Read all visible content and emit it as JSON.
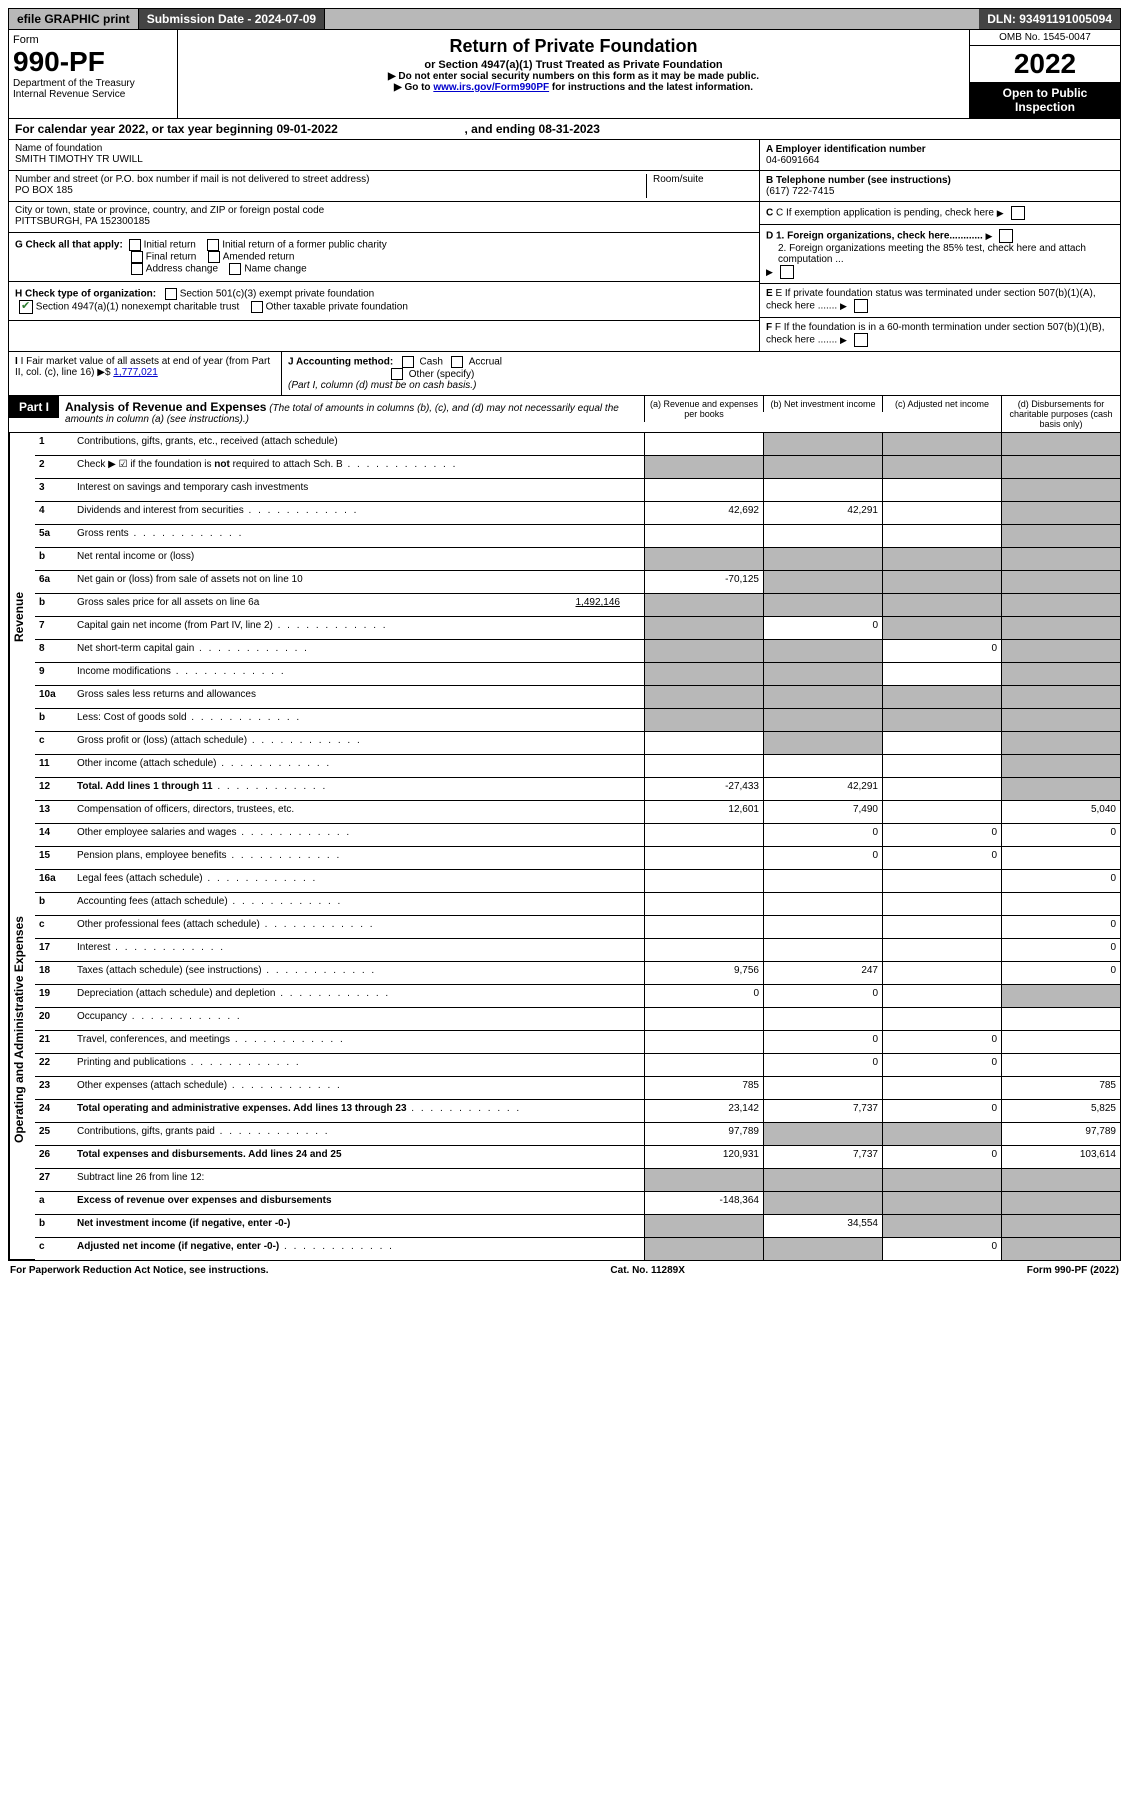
{
  "topbar": {
    "efile": "efile GRAPHIC print",
    "subdate_label": "Submission Date - ",
    "subdate": "2024-07-09",
    "dln_label": "DLN: ",
    "dln": "93491191005094"
  },
  "header": {
    "form_label": "Form",
    "form_no": "990-PF",
    "dept": "Department of the Treasury",
    "irs": "Internal Revenue Service",
    "title": "Return of Private Foundation",
    "subtitle": "or Section 4947(a)(1) Trust Treated as Private Foundation",
    "instr1": "▶ Do not enter social security numbers on this form as it may be made public.",
    "instr2_prefix": "▶ Go to ",
    "instr2_link": "www.irs.gov/Form990PF",
    "instr2_suffix": " for instructions and the latest information.",
    "omb": "OMB No. 1545-0047",
    "year": "2022",
    "open": "Open to Public Inspection"
  },
  "calyear": {
    "text": "For calendar year 2022, or tax year beginning 09-01-2022",
    "ending": ", and ending 08-31-2023"
  },
  "info": {
    "name_label": "Name of foundation",
    "name": "SMITH TIMOTHY TR UWILL",
    "addr_label": "Number and street (or P.O. box number if mail is not delivered to street address)",
    "addr": "PO BOX 185",
    "room_label": "Room/suite",
    "city_label": "City or town, state or province, country, and ZIP or foreign postal code",
    "city": "PITTSBURGH, PA  152300185",
    "a_label": "A Employer identification number",
    "a_val": "04-6091664",
    "b_label": "B Telephone number (see instructions)",
    "b_val": "(617) 722-7415",
    "c_label": "C If exemption application is pending, check here",
    "d1_label": "D 1. Foreign organizations, check here............",
    "d2_label": "2. Foreign organizations meeting the 85% test, check here and attach computation ...",
    "e_label": "E If private foundation status was terminated under section 507(b)(1)(A), check here .......",
    "f_label": "F If the foundation is in a 60-month termination under section 507(b)(1)(B), check here .......",
    "g_label": "G Check all that apply:",
    "g_opts": [
      "Initial return",
      "Initial return of a former public charity",
      "Final return",
      "Amended return",
      "Address change",
      "Name change"
    ],
    "h_label": "H Check type of organization:",
    "h_opts": [
      "Section 501(c)(3) exempt private foundation",
      "Section 4947(a)(1) nonexempt charitable trust",
      "Other taxable private foundation"
    ],
    "i_label": "I Fair market value of all assets at end of year (from Part II, col. (c), line 16)",
    "i_val": "1,777,021",
    "j_label": "J Accounting method:",
    "j_opts": [
      "Cash",
      "Accrual",
      "Other (specify)"
    ],
    "j_note": "(Part I, column (d) must be on cash basis.)"
  },
  "part1": {
    "label": "Part I",
    "title": "Analysis of Revenue and Expenses",
    "note": "(The total of amounts in columns (b), (c), and (d) may not necessarily equal the amounts in column (a) (see instructions).)",
    "col_a": "(a) Revenue and expenses per books",
    "col_b": "(b) Net investment income",
    "col_c": "(c) Adjusted net income",
    "col_d": "(d) Disbursements for charitable purposes (cash basis only)"
  },
  "sides": {
    "rev": "Revenue",
    "ops": "Operating and Administrative Expenses"
  },
  "rows": [
    {
      "n": "1",
      "d": "Contributions, gifts, grants, etc., received (attach schedule)",
      "a": "",
      "b": "s",
      "c": "s",
      "dd": "s"
    },
    {
      "n": "2",
      "d": "Check ▶ ☑ if the foundation is not required to attach Sch. B",
      "a": "s",
      "b": "s",
      "c": "s",
      "dd": "s",
      "dots": true,
      "bold_not": true
    },
    {
      "n": "3",
      "d": "Interest on savings and temporary cash investments",
      "a": "",
      "b": "",
      "c": "",
      "dd": "s"
    },
    {
      "n": "4",
      "d": "Dividends and interest from securities",
      "a": "42,692",
      "b": "42,291",
      "c": "",
      "dd": "s",
      "dots": true
    },
    {
      "n": "5a",
      "d": "Gross rents",
      "a": "",
      "b": "",
      "c": "",
      "dd": "s",
      "dots": true
    },
    {
      "n": "b",
      "d": "Net rental income or (loss)",
      "a": "s",
      "b": "s",
      "c": "s",
      "dd": "s",
      "inset": true
    },
    {
      "n": "6a",
      "d": "Net gain or (loss) from sale of assets not on line 10",
      "a": "-70,125",
      "b": "s",
      "c": "s",
      "dd": "s"
    },
    {
      "n": "b",
      "d": "Gross sales price for all assets on line 6a",
      "a": "s",
      "b": "s",
      "c": "s",
      "dd": "s",
      "inset": true,
      "inline_val": "1,492,146"
    },
    {
      "n": "7",
      "d": "Capital gain net income (from Part IV, line 2)",
      "a": "s",
      "b": "0",
      "c": "s",
      "dd": "s",
      "dots": true
    },
    {
      "n": "8",
      "d": "Net short-term capital gain",
      "a": "s",
      "b": "s",
      "c": "0",
      "dd": "s",
      "dots": true
    },
    {
      "n": "9",
      "d": "Income modifications",
      "a": "s",
      "b": "s",
      "c": "",
      "dd": "s",
      "dots": true
    },
    {
      "n": "10a",
      "d": "Gross sales less returns and allowances",
      "a": "s",
      "b": "s",
      "c": "s",
      "dd": "s",
      "inset": true
    },
    {
      "n": "b",
      "d": "Less: Cost of goods sold",
      "a": "s",
      "b": "s",
      "c": "s",
      "dd": "s",
      "inset": true,
      "dots": true
    },
    {
      "n": "c",
      "d": "Gross profit or (loss) (attach schedule)",
      "a": "",
      "b": "s",
      "c": "",
      "dd": "s",
      "dots": true
    },
    {
      "n": "11",
      "d": "Other income (attach schedule)",
      "a": "",
      "b": "",
      "c": "",
      "dd": "s",
      "dots": true
    },
    {
      "n": "12",
      "d": "Total. Add lines 1 through 11",
      "a": "-27,433",
      "b": "42,291",
      "c": "",
      "dd": "s",
      "dots": true,
      "bold": true
    },
    {
      "n": "13",
      "d": "Compensation of officers, directors, trustees, etc.",
      "a": "12,601",
      "b": "7,490",
      "c": "",
      "dd": "5,040"
    },
    {
      "n": "14",
      "d": "Other employee salaries and wages",
      "a": "",
      "b": "0",
      "c": "0",
      "dd": "0",
      "dots": true
    },
    {
      "n": "15",
      "d": "Pension plans, employee benefits",
      "a": "",
      "b": "0",
      "c": "0",
      "dd": "",
      "dots": true
    },
    {
      "n": "16a",
      "d": "Legal fees (attach schedule)",
      "a": "",
      "b": "",
      "c": "",
      "dd": "0",
      "dots": true
    },
    {
      "n": "b",
      "d": "Accounting fees (attach schedule)",
      "a": "",
      "b": "",
      "c": "",
      "dd": "",
      "dots": true
    },
    {
      "n": "c",
      "d": "Other professional fees (attach schedule)",
      "a": "",
      "b": "",
      "c": "",
      "dd": "0",
      "dots": true
    },
    {
      "n": "17",
      "d": "Interest",
      "a": "",
      "b": "",
      "c": "",
      "dd": "0",
      "dots": true
    },
    {
      "n": "18",
      "d": "Taxes (attach schedule) (see instructions)",
      "a": "9,756",
      "b": "247",
      "c": "",
      "dd": "0",
      "dots": true
    },
    {
      "n": "19",
      "d": "Depreciation (attach schedule) and depletion",
      "a": "0",
      "b": "0",
      "c": "",
      "dd": "s",
      "dots": true
    },
    {
      "n": "20",
      "d": "Occupancy",
      "a": "",
      "b": "",
      "c": "",
      "dd": "",
      "dots": true
    },
    {
      "n": "21",
      "d": "Travel, conferences, and meetings",
      "a": "",
      "b": "0",
      "c": "0",
      "dd": "",
      "dots": true
    },
    {
      "n": "22",
      "d": "Printing and publications",
      "a": "",
      "b": "0",
      "c": "0",
      "dd": "",
      "dots": true
    },
    {
      "n": "23",
      "d": "Other expenses (attach schedule)",
      "a": "785",
      "b": "",
      "c": "",
      "dd": "785",
      "dots": true
    },
    {
      "n": "24",
      "d": "Total operating and administrative expenses. Add lines 13 through 23",
      "a": "23,142",
      "b": "7,737",
      "c": "0",
      "dd": "5,825",
      "dots": true,
      "bold": true
    },
    {
      "n": "25",
      "d": "Contributions, gifts, grants paid",
      "a": "97,789",
      "b": "s",
      "c": "s",
      "dd": "97,789",
      "dots": true
    },
    {
      "n": "26",
      "d": "Total expenses and disbursements. Add lines 24 and 25",
      "a": "120,931",
      "b": "7,737",
      "c": "0",
      "dd": "103,614",
      "bold": true
    },
    {
      "n": "27",
      "d": "Subtract line 26 from line 12:",
      "a": "s",
      "b": "s",
      "c": "s",
      "dd": "s"
    },
    {
      "n": "a",
      "d": "Excess of revenue over expenses and disbursements",
      "a": "-148,364",
      "b": "s",
      "c": "s",
      "dd": "s",
      "bold": true
    },
    {
      "n": "b",
      "d": "Net investment income (if negative, enter -0-)",
      "a": "s",
      "b": "34,554",
      "c": "s",
      "dd": "s",
      "bold": true
    },
    {
      "n": "c",
      "d": "Adjusted net income (if negative, enter -0-)",
      "a": "s",
      "b": "s",
      "c": "0",
      "dd": "s",
      "bold": true,
      "dots": true
    }
  ],
  "footer": {
    "left": "For Paperwork Reduction Act Notice, see instructions.",
    "mid": "Cat. No. 11289X",
    "right": "Form 990-PF (2022)"
  },
  "revenue_row_count": 16,
  "link_color": "#0000cc",
  "shade_color": "#b8b8b8",
  "check_green": "#2e7d32"
}
